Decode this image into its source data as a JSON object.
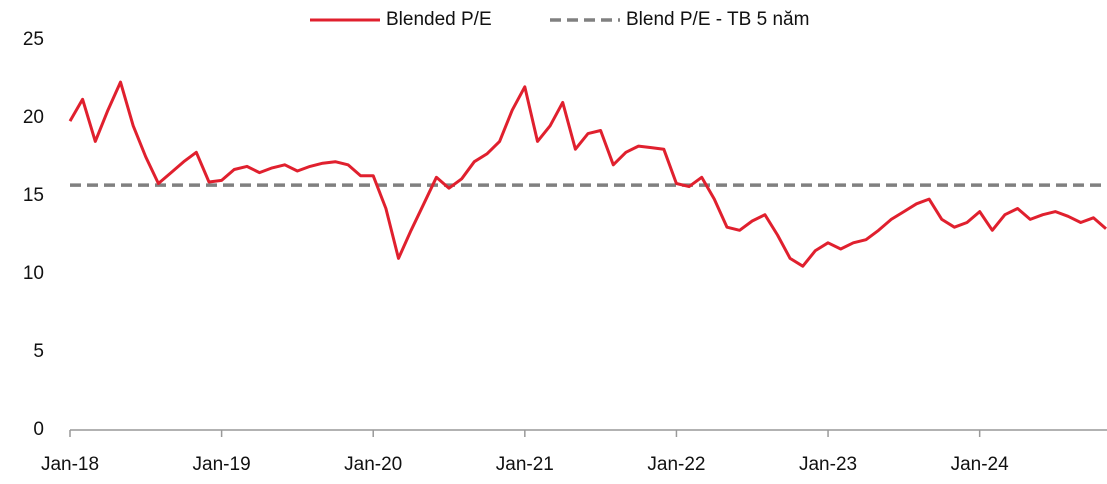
{
  "chart_data": {
    "type": "line",
    "x": [
      "2018-01",
      "2018-02",
      "2018-03",
      "2018-04",
      "2018-05",
      "2018-06",
      "2018-07",
      "2018-08",
      "2018-09",
      "2018-10",
      "2018-11",
      "2018-12",
      "2019-01",
      "2019-02",
      "2019-03",
      "2019-04",
      "2019-05",
      "2019-06",
      "2019-07",
      "2019-08",
      "2019-09",
      "2019-10",
      "2019-11",
      "2019-12",
      "2020-01",
      "2020-02",
      "2020-03",
      "2020-04",
      "2020-05",
      "2020-06",
      "2020-07",
      "2020-08",
      "2020-09",
      "2020-10",
      "2020-11",
      "2020-12",
      "2021-01",
      "2021-02",
      "2021-03",
      "2021-04",
      "2021-05",
      "2021-06",
      "2021-07",
      "2021-08",
      "2021-09",
      "2021-10",
      "2021-11",
      "2021-12",
      "2022-01",
      "2022-02",
      "2022-03",
      "2022-04",
      "2022-05",
      "2022-06",
      "2022-07",
      "2022-08",
      "2022-09",
      "2022-10",
      "2022-11",
      "2022-12",
      "2023-01",
      "2023-02",
      "2023-03",
      "2023-04",
      "2023-05",
      "2023-06",
      "2023-07",
      "2023-08",
      "2023-09",
      "2023-10",
      "2023-11",
      "2023-12",
      "2024-01",
      "2024-02",
      "2024-03",
      "2024-04",
      "2024-05",
      "2024-06",
      "2024-07",
      "2024-08",
      "2024-09",
      "2024-10",
      "2024-11"
    ],
    "series": [
      {
        "name": "Blended P/E",
        "color": "#e0202e",
        "dashed": false,
        "values": [
          19.8,
          21.2,
          18.5,
          20.5,
          22.3,
          19.5,
          17.5,
          15.8,
          16.5,
          17.2,
          17.8,
          15.9,
          16.0,
          16.7,
          16.9,
          16.5,
          16.8,
          17.0,
          16.6,
          16.9,
          17.1,
          17.2,
          17.0,
          16.3,
          16.3,
          14.2,
          11.0,
          12.8,
          14.5,
          16.2,
          15.5,
          16.1,
          17.2,
          17.7,
          18.5,
          20.5,
          22.0,
          18.5,
          19.5,
          21.0,
          18.0,
          19.0,
          19.2,
          17.0,
          17.8,
          18.2,
          18.1,
          18.0,
          15.8,
          15.6,
          16.2,
          14.8,
          13.0,
          12.8,
          13.4,
          13.8,
          12.5,
          11.0,
          10.5,
          11.5,
          12.0,
          11.6,
          12.0,
          12.2,
          12.8,
          13.5,
          14.0,
          14.5,
          14.8,
          13.5,
          13.0,
          13.3,
          14.0,
          12.8,
          13.8,
          14.2,
          13.5,
          13.8,
          14.0,
          13.7,
          13.3,
          13.6,
          12.9
        ]
      },
      {
        "name": "Blend P/E - TB 5 năm",
        "color": "#808080",
        "dashed": true,
        "values": [
          15.7,
          15.7,
          15.7,
          15.7,
          15.7,
          15.7,
          15.7,
          15.7,
          15.7,
          15.7,
          15.7,
          15.7,
          15.7,
          15.7,
          15.7,
          15.7,
          15.7,
          15.7,
          15.7,
          15.7,
          15.7,
          15.7,
          15.7,
          15.7,
          15.7,
          15.7,
          15.7,
          15.7,
          15.7,
          15.7,
          15.7,
          15.7,
          15.7,
          15.7,
          15.7,
          15.7,
          15.7,
          15.7,
          15.7,
          15.7,
          15.7,
          15.7,
          15.7,
          15.7,
          15.7,
          15.7,
          15.7,
          15.7,
          15.7,
          15.7,
          15.7,
          15.7,
          15.7,
          15.7,
          15.7,
          15.7,
          15.7,
          15.7,
          15.7,
          15.7,
          15.7,
          15.7,
          15.7,
          15.7,
          15.7,
          15.7,
          15.7,
          15.7,
          15.7,
          15.7,
          15.7,
          15.7,
          15.7,
          15.7,
          15.7,
          15.7,
          15.7,
          15.7,
          15.7,
          15.7,
          15.7,
          15.7,
          15.7
        ]
      }
    ],
    "xlim": [
      "2018-01",
      "2024-11"
    ],
    "xticks": [
      {
        "value": "2018-01",
        "label": "Jan-18"
      },
      {
        "value": "2019-01",
        "label": "Jan-19"
      },
      {
        "value": "2020-01",
        "label": "Jan-20"
      },
      {
        "value": "2021-01",
        "label": "Jan-21"
      },
      {
        "value": "2022-01",
        "label": "Jan-22"
      },
      {
        "value": "2023-01",
        "label": "Jan-23"
      },
      {
        "value": "2024-01",
        "label": "Jan-24"
      }
    ],
    "ylim": [
      0,
      25
    ],
    "yticks": [
      0,
      5,
      10,
      15,
      20,
      25
    ],
    "legend": "top"
  }
}
